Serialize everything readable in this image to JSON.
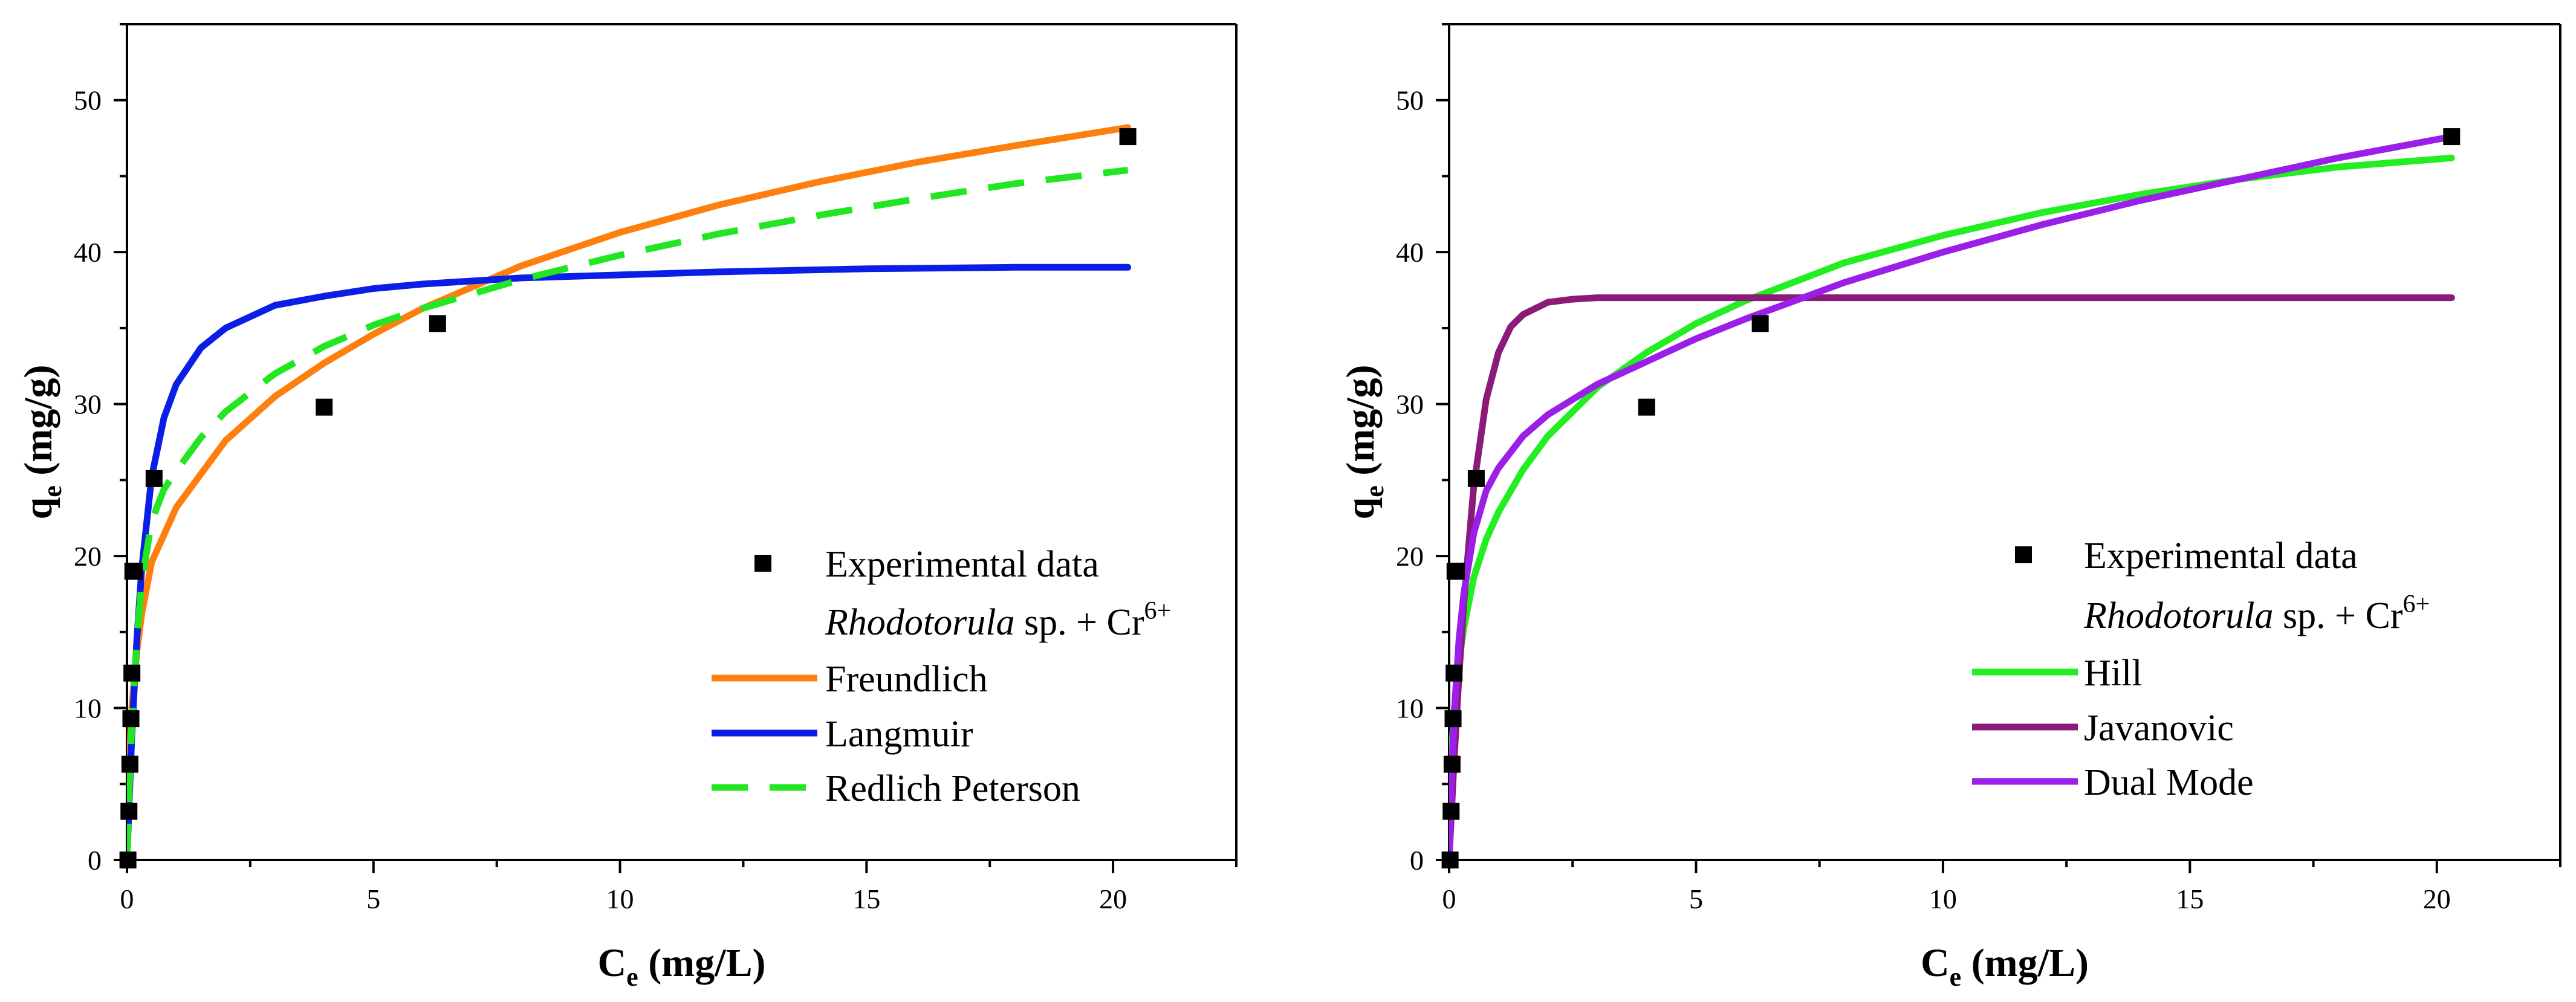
{
  "chart_data": [
    {
      "type": "scatter+line",
      "title": "",
      "xlabel": "C",
      "xlabel_sub": "e",
      "xlabel_unit": " (mg/L)",
      "ylabel": "q",
      "ylabel_sub": "e",
      "ylabel_unit": " (mg/g)",
      "xlim": [
        0,
        22.5
      ],
      "ylim": [
        0,
        55
      ],
      "xticks": [
        0,
        5,
        10,
        15,
        20
      ],
      "yticks": [
        0,
        10,
        20,
        30,
        40,
        50
      ],
      "legend_position": "bottom-right",
      "legend_subtitle": {
        "italic": "Rhodotorula",
        "rest": " sp. + Cr",
        "sup": "6+"
      },
      "points": {
        "name": "Experimental data",
        "color": "#000000",
        "x": [
          0.02,
          0.04,
          0.06,
          0.08,
          0.1,
          0.12,
          0.15,
          0.55,
          4.0,
          6.3,
          20.3
        ],
        "y": [
          0,
          3.2,
          6.3,
          9.3,
          12.3,
          19.0,
          19.0,
          25.1,
          29.8,
          35.3,
          47.6
        ]
      },
      "series": [
        {
          "name": "Freundlich",
          "color": "#ff7f0e",
          "dash": false,
          "x": [
            0.03,
            0.1,
            0.2,
            0.3,
            0.5,
            1,
            2,
            3,
            4,
            5,
            6,
            8,
            10,
            12,
            14,
            16,
            18,
            20.3
          ],
          "y": [
            5.1,
            10.2,
            13.7,
            16.2,
            19.6,
            23.2,
            27.6,
            30.5,
            32.7,
            34.6,
            36.3,
            39.1,
            41.3,
            43.1,
            44.6,
            45.9,
            47.0,
            48.2
          ]
        },
        {
          "name": "Langmuir",
          "color": "#0a1ee6",
          "dash": false,
          "x": [
            0,
            0.05,
            0.1,
            0.2,
            0.3,
            0.5,
            0.75,
            1,
            1.5,
            2,
            3,
            4,
            5,
            6,
            8,
            10,
            12,
            15,
            18,
            20.3
          ],
          "y": [
            0,
            4.2,
            8.3,
            14.5,
            19.2,
            25.2,
            29.1,
            31.3,
            33.7,
            35.0,
            36.5,
            37.1,
            37.6,
            37.9,
            38.3,
            38.5,
            38.7,
            38.9,
            39.0,
            39.0
          ]
        },
        {
          "name": "Redlich Peterson",
          "color": "#22e622",
          "dash": true,
          "x": [
            0,
            0.05,
            0.1,
            0.2,
            0.3,
            0.5,
            0.75,
            1,
            1.5,
            2,
            3,
            4,
            5,
            6,
            8,
            10,
            12,
            14,
            16,
            18,
            20.3
          ],
          "y": [
            0,
            5.0,
            9.0,
            14.5,
            18.3,
            22.3,
            24.4,
            25.6,
            27.8,
            29.5,
            32.0,
            33.8,
            35.2,
            36.3,
            38.2,
            39.8,
            41.2,
            42.4,
            43.5,
            44.5,
            45.4
          ]
        }
      ]
    },
    {
      "type": "scatter+line",
      "title": "",
      "xlabel": "C",
      "xlabel_sub": "e",
      "xlabel_unit": " (mg/L)",
      "ylabel": "q",
      "ylabel_sub": "e",
      "ylabel_unit": " (mg/g)",
      "xlim": [
        0,
        22.5
      ],
      "ylim": [
        0,
        55
      ],
      "xticks": [
        0,
        5,
        10,
        15,
        20
      ],
      "yticks": [
        0,
        10,
        20,
        30,
        40,
        50
      ],
      "legend_position": "bottom-right",
      "legend_subtitle": {
        "italic": "Rhodotorula",
        "rest": " sp. + Cr",
        "sup": "6+"
      },
      "points": {
        "name": "Experimental data",
        "color": "#000000",
        "x": [
          0.02,
          0.04,
          0.06,
          0.08,
          0.1,
          0.12,
          0.15,
          0.55,
          4.0,
          6.3,
          20.3
        ],
        "y": [
          0,
          3.2,
          6.3,
          9.3,
          12.3,
          19.0,
          19.0,
          25.1,
          29.8,
          35.3,
          47.6
        ]
      },
      "series": [
        {
          "name": "Hill",
          "color": "#22ee22",
          "dash": false,
          "x": [
            0,
            0.05,
            0.1,
            0.2,
            0.3,
            0.5,
            0.75,
            1,
            1.5,
            2,
            3,
            4,
            5,
            6,
            8,
            10,
            12,
            14,
            16,
            18,
            20.3
          ],
          "y": [
            0,
            7.0,
            9.8,
            13.0,
            15.3,
            18.6,
            21.1,
            22.9,
            25.7,
            27.9,
            31.1,
            33.4,
            35.3,
            36.8,
            39.3,
            41.1,
            42.6,
            43.8,
            44.8,
            45.6,
            46.2
          ]
        },
        {
          "name": "Javanovic",
          "color": "#8b1a78",
          "dash": false,
          "x": [
            0,
            0.05,
            0.1,
            0.2,
            0.3,
            0.5,
            0.75,
            1,
            1.25,
            1.5,
            2,
            2.5,
            3,
            4,
            6,
            10,
            15,
            20.3
          ],
          "y": [
            0,
            3.3,
            6.5,
            12.1,
            17.0,
            24.6,
            30.3,
            33.4,
            35.1,
            35.9,
            36.7,
            36.9,
            37.0,
            37.0,
            37.0,
            37.0,
            37.0,
            37.0
          ]
        },
        {
          "name": "Dual Mode",
          "color": "#9b1fe8",
          "dash": false,
          "x": [
            0,
            0.05,
            0.1,
            0.2,
            0.3,
            0.5,
            0.75,
            1,
            1.5,
            2,
            3,
            4,
            5,
            6,
            8,
            10,
            12,
            14,
            16,
            18,
            20.3
          ],
          "y": [
            0,
            5.5,
            9.5,
            14.5,
            17.6,
            21.5,
            24.3,
            25.8,
            27.9,
            29.3,
            31.3,
            32.8,
            34.3,
            35.6,
            38.0,
            40.0,
            41.8,
            43.4,
            44.8,
            46.2,
            47.6
          ]
        }
      ]
    }
  ]
}
